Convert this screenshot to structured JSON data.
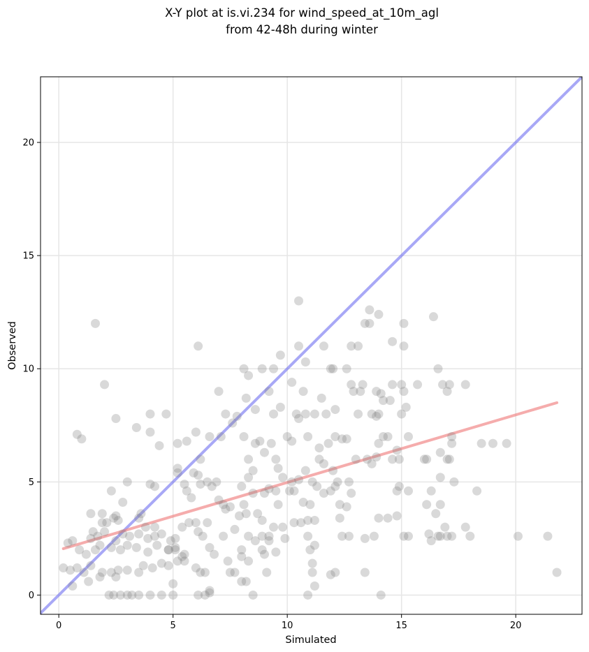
{
  "chart_data": {
    "type": "scatter",
    "title": [
      "X-Y plot at is.vi.234 for wind_speed_at_10m_agl",
      "from 42-48h during winter"
    ],
    "xlabel": "Simulated",
    "ylabel": "Observed",
    "xlim": [
      -0.8,
      22.9
    ],
    "ylim": [
      -0.85,
      22.9
    ],
    "xticks": [
      0,
      5,
      10,
      15,
      20
    ],
    "yticks": [
      0,
      5,
      10,
      15,
      20
    ],
    "xtick_labels": [
      "0",
      "5",
      "10",
      "15",
      "20"
    ],
    "ytick_labels": [
      "0",
      "5",
      "10",
      "15",
      "20"
    ],
    "grid": true,
    "legend": "none",
    "point_color": "#808080",
    "identity_line": {
      "from": [
        -0.8,
        -0.8
      ],
      "to": [
        22.9,
        22.9
      ],
      "color": "#6e6ef0"
    },
    "fit_line": {
      "from": [
        0.2,
        2.05
      ],
      "to": [
        21.8,
        8.5
      ],
      "color": "#f08080"
    },
    "points": [
      [
        1.6,
        12.0
      ],
      [
        2.0,
        9.3
      ],
      [
        0.8,
        7.1
      ],
      [
        1.0,
        6.9
      ],
      [
        2.5,
        7.8
      ],
      [
        3.4,
        7.4
      ],
      [
        4.0,
        8.0
      ],
      [
        4.0,
        7.2
      ],
      [
        4.7,
        8.0
      ],
      [
        4.4,
        6.6
      ],
      [
        4.0,
        4.9
      ],
      [
        4.2,
        4.8
      ],
      [
        2.3,
        4.6
      ],
      [
        2.8,
        4.1
      ],
      [
        3.0,
        5.0
      ],
      [
        1.4,
        3.6
      ],
      [
        1.9,
        3.6
      ],
      [
        2.5,
        3.5
      ],
      [
        3.6,
        3.6
      ],
      [
        1.9,
        3.2
      ],
      [
        2.1,
        3.2
      ],
      [
        2.4,
        3.4
      ],
      [
        2.6,
        3.3
      ],
      [
        3.5,
        3.4
      ],
      [
        3.8,
        3.0
      ],
      [
        4.2,
        3.0
      ],
      [
        0.4,
        2.3
      ],
      [
        0.6,
        2.4
      ],
      [
        1.4,
        2.5
      ],
      [
        1.5,
        2.8
      ],
      [
        1.7,
        2.6
      ],
      [
        2.0,
        2.8
      ],
      [
        2.5,
        2.4
      ],
      [
        2.8,
        2.7
      ],
      [
        3.1,
        2.6
      ],
      [
        3.5,
        2.7
      ],
      [
        3.9,
        2.5
      ],
      [
        4.2,
        2.6
      ],
      [
        4.5,
        2.7
      ],
      [
        4.9,
        2.4
      ],
      [
        0.9,
        2.0
      ],
      [
        1.2,
        1.8
      ],
      [
        1.6,
        2.0
      ],
      [
        1.8,
        2.2
      ],
      [
        2.3,
        2.1
      ],
      [
        2.7,
        2.0
      ],
      [
        3.0,
        2.2
      ],
      [
        3.4,
        2.1
      ],
      [
        3.9,
        1.9
      ],
      [
        4.3,
        2.2
      ],
      [
        4.8,
        2.0
      ],
      [
        5.1,
        2.1
      ],
      [
        0.2,
        1.2
      ],
      [
        0.5,
        1.1
      ],
      [
        0.8,
        1.2
      ],
      [
        1.1,
        1.0
      ],
      [
        1.4,
        1.3
      ],
      [
        1.9,
        1.0
      ],
      [
        2.3,
        1.0
      ],
      [
        2.6,
        1.1
      ],
      [
        3.0,
        1.1
      ],
      [
        3.5,
        1.0
      ],
      [
        3.7,
        1.3
      ],
      [
        4.1,
        1.2
      ],
      [
        4.5,
        1.4
      ],
      [
        4.8,
        1.3
      ],
      [
        5.2,
        1.5
      ],
      [
        5.5,
        1.8
      ],
      [
        0.6,
        0.4
      ],
      [
        1.3,
        0.6
      ],
      [
        1.8,
        0.8
      ],
      [
        2.5,
        0.8
      ],
      [
        2.2,
        0.0
      ],
      [
        2.4,
        0.0
      ],
      [
        2.7,
        0.0
      ],
      [
        3.0,
        0.0
      ],
      [
        3.2,
        0.0
      ],
      [
        3.5,
        0.0
      ],
      [
        4.0,
        0.0
      ],
      [
        4.5,
        0.0
      ],
      [
        5.0,
        0.0
      ],
      [
        5.0,
        0.5
      ],
      [
        5.2,
        6.7
      ],
      [
        5.6,
        6.8
      ],
      [
        5.2,
        5.6
      ],
      [
        5.2,
        5.4
      ],
      [
        5.5,
        4.9
      ],
      [
        5.6,
        4.6
      ],
      [
        5.8,
        4.3
      ],
      [
        5.9,
        5.4
      ],
      [
        6.1,
        5.3
      ],
      [
        6.2,
        4.9
      ],
      [
        6.5,
        5.0
      ],
      [
        6.7,
        4.8
      ],
      [
        6.9,
        5.0
      ],
      [
        6.0,
        7.2
      ],
      [
        6.2,
        6.0
      ],
      [
        6.6,
        7.0
      ],
      [
        7.0,
        9.0
      ],
      [
        6.1,
        11.0
      ],
      [
        5.4,
        3.0
      ],
      [
        5.7,
        3.2
      ],
      [
        6.0,
        3.2
      ],
      [
        6.1,
        2.8
      ],
      [
        6.3,
        2.6
      ],
      [
        6.5,
        3.2
      ],
      [
        6.6,
        2.1
      ],
      [
        6.8,
        1.8
      ],
      [
        5.1,
        2.5
      ],
      [
        5.1,
        2.0
      ],
      [
        4.8,
        2.0
      ],
      [
        5.4,
        1.7
      ],
      [
        5.5,
        1.5
      ],
      [
        6.0,
        1.2
      ],
      [
        6.2,
        1.0
      ],
      [
        6.4,
        1.0
      ],
      [
        6.6,
        0.1
      ],
      [
        6.6,
        0.2
      ],
      [
        6.1,
        0.0
      ],
      [
        6.4,
        0.0
      ],
      [
        7.0,
        4.2
      ],
      [
        7.2,
        4.0
      ],
      [
        7.3,
        3.8
      ],
      [
        7.5,
        3.9
      ],
      [
        7.7,
        2.9
      ],
      [
        7.2,
        2.6
      ],
      [
        7.9,
        3.5
      ],
      [
        8.2,
        3.6
      ],
      [
        8.1,
        4.0
      ],
      [
        8.0,
        4.8
      ],
      [
        8.3,
        5.2
      ],
      [
        8.5,
        5.5
      ],
      [
        8.5,
        4.5
      ],
      [
        8.7,
        3.6
      ],
      [
        8.9,
        3.3
      ],
      [
        9.0,
        4.5
      ],
      [
        9.2,
        4.7
      ],
      [
        9.5,
        4.6
      ],
      [
        9.6,
        4.0
      ],
      [
        9.8,
        3.0
      ],
      [
        9.4,
        3.0
      ],
      [
        9.2,
        2.6
      ],
      [
        8.9,
        2.6
      ],
      [
        8.6,
        2.4
      ],
      [
        8.3,
        2.6
      ],
      [
        8.0,
        2.0
      ],
      [
        8.0,
        1.7
      ],
      [
        7.4,
        1.5
      ],
      [
        7.5,
        1.0
      ],
      [
        7.7,
        1.0
      ],
      [
        8.0,
        0.6
      ],
      [
        8.3,
        1.5
      ],
      [
        8.9,
        2.0
      ],
      [
        9.0,
        1.8
      ],
      [
        9.1,
        1.0
      ],
      [
        9.5,
        1.9
      ],
      [
        9.2,
        2.4
      ],
      [
        9.9,
        2.5
      ],
      [
        8.2,
        0.6
      ],
      [
        8.5,
        0.0
      ],
      [
        7.3,
        8.0
      ],
      [
        7.6,
        7.6
      ],
      [
        7.8,
        7.9
      ],
      [
        8.1,
        7.0
      ],
      [
        8.3,
        6.0
      ],
      [
        8.6,
        6.7
      ],
      [
        8.8,
        6.8
      ],
      [
        9.0,
        6.3
      ],
      [
        9.3,
        6.7
      ],
      [
        9.5,
        6.0
      ],
      [
        9.6,
        5.6
      ],
      [
        9.8,
        5.2
      ],
      [
        10.0,
        7.0
      ],
      [
        10.2,
        6.8
      ],
      [
        8.1,
        10.0
      ],
      [
        8.3,
        9.7
      ],
      [
        8.9,
        10.0
      ],
      [
        9.4,
        10.0
      ],
      [
        9.7,
        10.6
      ],
      [
        9.7,
        8.3
      ],
      [
        9.4,
        8.0
      ],
      [
        8.6,
        8.2
      ],
      [
        8.2,
        8.7
      ],
      [
        9.2,
        9.0
      ],
      [
        7.1,
        7.0
      ],
      [
        10.2,
        5.0
      ],
      [
        10.5,
        5.1
      ],
      [
        10.7,
        4.1
      ],
      [
        10.9,
        3.3
      ],
      [
        10.9,
        2.6
      ],
      [
        10.3,
        3.2
      ],
      [
        10.6,
        3.2
      ],
      [
        11.0,
        4.0
      ],
      [
        10.1,
        4.6
      ],
      [
        10.3,
        4.6
      ],
      [
        10.8,
        5.5
      ],
      [
        11.1,
        5.0
      ],
      [
        11.3,
        4.8
      ],
      [
        11.6,
        4.5
      ],
      [
        11.9,
        4.6
      ],
      [
        12.1,
        4.8
      ],
      [
        12.3,
        4.0
      ],
      [
        12.3,
        3.4
      ],
      [
        11.2,
        3.3
      ],
      [
        11.2,
        2.2
      ],
      [
        11.0,
        2.0
      ],
      [
        11.1,
        1.4
      ],
      [
        11.1,
        1.0
      ],
      [
        11.2,
        0.4
      ],
      [
        10.9,
        0.0
      ],
      [
        11.9,
        0.9
      ],
      [
        12.1,
        1.0
      ],
      [
        12.4,
        2.6
      ],
      [
        12.7,
        2.6
      ],
      [
        12.6,
        3.9
      ],
      [
        12.8,
        4.5
      ],
      [
        12.7,
        5.0
      ],
      [
        12.2,
        5.0
      ],
      [
        10.9,
        7.0
      ],
      [
        11.4,
        6.5
      ],
      [
        11.4,
        6.0
      ],
      [
        11.6,
        5.8
      ],
      [
        11.8,
        6.7
      ],
      [
        12.1,
        7.0
      ],
      [
        12.4,
        6.9
      ],
      [
        12.6,
        6.9
      ],
      [
        12.0,
        5.5
      ],
      [
        11.2,
        8.0
      ],
      [
        11.5,
        8.7
      ],
      [
        11.7,
        8.0
      ],
      [
        12.1,
        8.2
      ],
      [
        10.8,
        8.0
      ],
      [
        10.4,
        8.0
      ],
      [
        10.5,
        7.8
      ],
      [
        10.2,
        9.4
      ],
      [
        10.7,
        9.0
      ],
      [
        11.6,
        11.0
      ],
      [
        11.9,
        10.0
      ],
      [
        12.6,
        10.0
      ],
      [
        12.8,
        11.0
      ],
      [
        13.1,
        11.0
      ],
      [
        13.4,
        12.0
      ],
      [
        13.6,
        12.0
      ],
      [
        13.6,
        12.6
      ],
      [
        14.0,
        12.4
      ],
      [
        10.8,
        10.3
      ],
      [
        10.5,
        11.0
      ],
      [
        10.5,
        13.0
      ],
      [
        12.0,
        10.0
      ],
      [
        13.3,
        9.3
      ],
      [
        12.8,
        9.3
      ],
      [
        12.9,
        9.0
      ],
      [
        13.2,
        9.0
      ],
      [
        13.1,
        8.0
      ],
      [
        13.7,
        8.0
      ],
      [
        13.9,
        7.9
      ],
      [
        14.0,
        8.0
      ],
      [
        13.9,
        9.0
      ],
      [
        14.1,
        8.9
      ],
      [
        14.2,
        8.6
      ],
      [
        14.2,
        7.0
      ],
      [
        13.5,
        6.0
      ],
      [
        13.7,
        5.8
      ],
      [
        13.9,
        6.1
      ],
      [
        14.0,
        6.7
      ],
      [
        14.6,
        6.0
      ],
      [
        14.9,
        6.0
      ],
      [
        14.8,
        6.4
      ],
      [
        14.4,
        7.0
      ],
      [
        14.5,
        8.6
      ],
      [
        15.0,
        8.0
      ],
      [
        15.2,
        8.3
      ],
      [
        15.3,
        7.0
      ],
      [
        15.1,
        9.0
      ],
      [
        15.0,
        9.3
      ],
      [
        14.6,
        9.3
      ],
      [
        14.6,
        11.2
      ],
      [
        15.1,
        11.0
      ],
      [
        15.1,
        12.0
      ],
      [
        13.0,
        6.0
      ],
      [
        13.8,
        2.6
      ],
      [
        13.4,
        2.5
      ],
      [
        13.4,
        1.0
      ],
      [
        14.1,
        0.0
      ],
      [
        14.0,
        3.4
      ],
      [
        14.4,
        3.4
      ],
      [
        14.8,
        3.5
      ],
      [
        14.8,
        4.6
      ],
      [
        14.9,
        4.8
      ],
      [
        15.1,
        2.6
      ],
      [
        15.3,
        2.6
      ],
      [
        15.3,
        4.6
      ],
      [
        15.7,
        9.3
      ],
      [
        16.0,
        6.0
      ],
      [
        16.1,
        6.0
      ],
      [
        16.1,
        4.0
      ],
      [
        16.3,
        4.6
      ],
      [
        16.2,
        2.7
      ],
      [
        16.3,
        2.4
      ],
      [
        16.7,
        2.6
      ],
      [
        16.6,
        2.6
      ],
      [
        16.5,
        3.6
      ],
      [
        16.7,
        4.0
      ],
      [
        16.7,
        5.2
      ],
      [
        16.7,
        6.3
      ],
      [
        17.0,
        6.0
      ],
      [
        17.1,
        6.0
      ],
      [
        17.2,
        6.7
      ],
      [
        17.2,
        7.0
      ],
      [
        17.3,
        5.0
      ],
      [
        16.9,
        3.0
      ],
      [
        17.0,
        2.6
      ],
      [
        17.2,
        2.6
      ],
      [
        16.6,
        10.0
      ],
      [
        16.8,
        9.3
      ],
      [
        17.0,
        9.0
      ],
      [
        17.1,
        9.3
      ],
      [
        16.4,
        12.3
      ],
      [
        17.8,
        9.3
      ],
      [
        18.0,
        2.6
      ],
      [
        17.8,
        3.0
      ],
      [
        18.3,
        4.6
      ],
      [
        18.5,
        6.7
      ],
      [
        19.0,
        6.7
      ],
      [
        19.6,
        6.7
      ],
      [
        20.1,
        2.6
      ],
      [
        21.4,
        2.6
      ],
      [
        21.8,
        1.0
      ]
    ]
  }
}
